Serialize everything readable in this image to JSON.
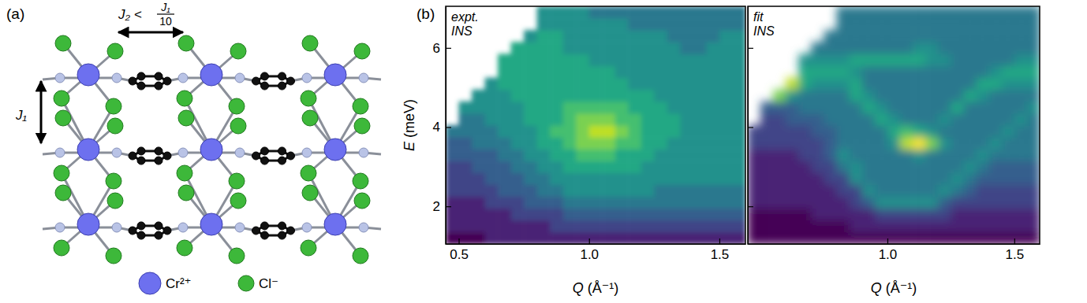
{
  "figure": {
    "panel_labels": [
      "(a)",
      "(b)"
    ]
  },
  "diagram": {
    "j1_label": "J₁",
    "j2_label": "J₂ <",
    "j2_fraction": {
      "numerator": "J₁",
      "denominator": "10"
    },
    "legend": [
      {
        "label": "Cr²⁺",
        "color": "#6d70ef"
      },
      {
        "label": "Cl⁻",
        "color": "#3db83a"
      }
    ]
  },
  "chart_data": [
    {
      "type": "heatmap",
      "annotations": [
        "expt.",
        "INS"
      ],
      "x_label": "Q (Å⁻¹)",
      "y_label": "E (meV)",
      "xlim": [
        0.45,
        1.6
      ],
      "ylim": [
        1.05,
        7.05
      ],
      "xticks": [
        0.5,
        {
          "value": 1,
          "label": "1.0"
        },
        1.5
      ],
      "yticks": [
        2,
        4,
        6
      ],
      "zlim": [
        0,
        10
      ],
      "x_bins": [
        0.45,
        0.5,
        0.55,
        0.6,
        0.65,
        0.7,
        0.75,
        0.8,
        0.85,
        0.9,
        0.95,
        1,
        1.05,
        1.1,
        1.15,
        1.2,
        1.25,
        1.3,
        1.35,
        1.4,
        1.45,
        1.5,
        1.55,
        1.6
      ],
      "y_bins": [
        1.05,
        1.35,
        1.65,
        1.95,
        2.25,
        2.55,
        2.85,
        3.15,
        3.45,
        3.75,
        4.05,
        4.35,
        4.65,
        4.95,
        5.25,
        5.55,
        5.85,
        6.15,
        6.45,
        6.75,
        7.05
      ],
      "cells": [
        [
          0,
          0,
          0,
          1,
          1,
          1,
          1,
          1,
          1,
          1,
          1,
          1,
          1,
          1,
          1,
          1,
          1,
          1,
          1,
          1,
          1,
          1,
          1
        ],
        [
          1,
          1,
          1,
          1,
          1,
          1,
          1,
          1,
          2,
          2,
          2,
          2,
          2,
          2,
          2,
          2,
          2,
          2,
          2,
          2,
          2,
          2,
          2
        ],
        [
          1,
          1,
          1,
          1,
          1,
          2,
          2,
          2,
          2,
          3,
          3,
          3,
          3,
          3,
          3,
          3,
          3,
          3,
          3,
          3,
          3,
          3,
          3
        ],
        [
          1,
          1,
          1,
          2,
          2,
          2,
          3,
          3,
          3,
          4,
          4,
          4,
          4,
          4,
          4,
          4,
          4,
          4,
          4,
          4,
          4,
          4,
          4
        ],
        [
          2,
          2,
          2,
          2,
          3,
          3,
          3,
          4,
          4,
          5,
          5,
          5,
          5,
          5,
          5,
          5,
          4,
          4,
          4,
          4,
          4,
          4,
          4
        ],
        [
          2,
          2,
          2,
          3,
          3,
          3,
          4,
          4,
          5,
          5,
          5,
          5,
          5,
          5,
          5,
          5,
          5,
          5,
          5,
          5,
          5,
          5,
          5
        ],
        [
          2,
          2,
          3,
          3,
          3,
          4,
          4,
          5,
          5,
          6,
          6,
          6,
          6,
          6,
          6,
          5,
          5,
          5,
          5,
          5,
          5,
          5,
          5
        ],
        [
          3,
          3,
          3,
          3,
          4,
          4,
          5,
          5,
          6,
          6,
          7,
          7,
          7,
          6,
          6,
          6,
          5,
          5,
          5,
          5,
          5,
          5,
          5
        ],
        [
          3,
          3,
          4,
          4,
          4,
          5,
          5,
          6,
          6,
          7,
          8,
          8,
          8,
          7,
          7,
          6,
          6,
          5,
          5,
          5,
          5,
          5,
          5
        ],
        [
          4,
          4,
          4,
          4,
          5,
          5,
          5,
          6,
          7,
          7,
          8,
          9,
          9,
          8,
          7,
          6,
          6,
          6,
          5,
          5,
          5,
          5,
          5
        ],
        [
          null,
          4,
          4,
          5,
          5,
          5,
          6,
          6,
          6,
          7,
          8,
          8,
          8,
          7,
          7,
          6,
          6,
          6,
          5,
          5,
          5,
          5,
          5
        ],
        [
          null,
          5,
          5,
          5,
          5,
          5,
          6,
          6,
          6,
          7,
          7,
          7,
          7,
          7,
          6,
          6,
          6,
          5,
          5,
          5,
          5,
          5,
          5
        ],
        [
          null,
          null,
          5,
          5,
          5,
          6,
          6,
          6,
          6,
          6,
          6,
          6,
          6,
          6,
          6,
          6,
          5,
          5,
          5,
          5,
          5,
          5,
          5
        ],
        [
          null,
          null,
          null,
          5,
          6,
          6,
          6,
          6,
          6,
          6,
          6,
          6,
          6,
          6,
          5,
          5,
          5,
          5,
          5,
          5,
          5,
          5,
          5
        ],
        [
          null,
          null,
          null,
          null,
          6,
          6,
          6,
          6,
          6,
          6,
          6,
          6,
          6,
          5,
          5,
          5,
          5,
          5,
          5,
          5,
          5,
          5,
          5
        ],
        [
          null,
          null,
          null,
          null,
          6,
          6,
          6,
          6,
          6,
          6,
          6,
          5,
          5,
          5,
          5,
          5,
          5,
          5,
          5,
          5,
          5,
          5,
          5
        ],
        [
          null,
          null,
          null,
          null,
          null,
          6,
          6,
          6,
          6,
          5,
          5,
          5,
          5,
          5,
          5,
          5,
          5,
          5,
          4,
          4,
          5,
          5,
          5
        ],
        [
          null,
          null,
          null,
          null,
          null,
          null,
          5,
          6,
          6,
          5,
          5,
          5,
          5,
          5,
          5,
          5,
          5,
          4,
          4,
          4,
          4,
          5,
          5
        ],
        [
          null,
          null,
          null,
          null,
          null,
          null,
          null,
          5,
          5,
          5,
          5,
          5,
          5,
          5,
          4,
          4,
          4,
          4,
          4,
          4,
          4,
          4,
          4
        ],
        [
          null,
          null,
          null,
          null,
          null,
          null,
          null,
          5,
          5,
          5,
          5,
          4,
          4,
          4,
          4,
          4,
          4,
          4,
          4,
          4,
          4,
          4,
          4
        ]
      ]
    },
    {
      "type": "heatmap",
      "annotations": [
        "fit",
        "INS"
      ],
      "x_label": "Q (Å⁻¹)",
      "xlim": [
        0.45,
        1.6
      ],
      "ylim": [
        1.05,
        7.05
      ],
      "xticks": [
        {
          "value": 1,
          "label": "1.0"
        },
        1.5
      ],
      "yticks": [
        2,
        4,
        6
      ],
      "tick_labels": "x",
      "zlim": [
        0,
        10
      ],
      "x_bins": [
        0.45,
        0.5,
        0.55,
        0.6,
        0.65,
        0.7,
        0.75,
        0.8,
        0.85,
        0.9,
        0.95,
        1,
        1.05,
        1.1,
        1.15,
        1.2,
        1.25,
        1.3,
        1.35,
        1.4,
        1.45,
        1.5,
        1.55,
        1.6
      ],
      "y_bins": [
        1.05,
        1.35,
        1.65,
        1.95,
        2.25,
        2.55,
        2.85,
        3.15,
        3.45,
        3.75,
        4.05,
        4.35,
        4.65,
        4.95,
        5.25,
        5.55,
        5.85,
        6.15,
        6.45,
        6.75,
        7.05
      ],
      "cells": [
        [
          0,
          0,
          0,
          0,
          0,
          0,
          0,
          0,
          0,
          0,
          0,
          0,
          0,
          0,
          0,
          0,
          0,
          0,
          0,
          0,
          0,
          0,
          0
        ],
        [
          0,
          0,
          0,
          0,
          0,
          0,
          0,
          0,
          1,
          1,
          1,
          1,
          1,
          1,
          1,
          1,
          1,
          1,
          1,
          1,
          1,
          1,
          1
        ],
        [
          0,
          0,
          0,
          0,
          0,
          1,
          1,
          1,
          1,
          1,
          2,
          2,
          2,
          2,
          2,
          2,
          1,
          1,
          1,
          1,
          1,
          1,
          1
        ],
        [
          1,
          1,
          1,
          1,
          1,
          1,
          1,
          1,
          2,
          3,
          5,
          5,
          5,
          5,
          5,
          3,
          2,
          2,
          2,
          2,
          2,
          2,
          2
        ],
        [
          1,
          1,
          1,
          1,
          1,
          1,
          1,
          2,
          2,
          5,
          4,
          4,
          4,
          4,
          4,
          5,
          4,
          3,
          2,
          2,
          2,
          2,
          2
        ],
        [
          1,
          1,
          1,
          1,
          1,
          1,
          2,
          2,
          5,
          4,
          4,
          4,
          4,
          4,
          4,
          4,
          5,
          4,
          3,
          3,
          3,
          3,
          3
        ],
        [
          1,
          1,
          1,
          1,
          1,
          2,
          2,
          4,
          5,
          4,
          4,
          4,
          4,
          4,
          4,
          4,
          4,
          5,
          4,
          3,
          3,
          3,
          3
        ],
        [
          1,
          1,
          1,
          1,
          2,
          2,
          3,
          5,
          4,
          4,
          4,
          4,
          4,
          5,
          4,
          4,
          4,
          4,
          5,
          4,
          4,
          4,
          4
        ],
        [
          2,
          2,
          2,
          2,
          2,
          2,
          3,
          4,
          4,
          4,
          4,
          5,
          9,
          10,
          8,
          5,
          4,
          4,
          4,
          5,
          4,
          4,
          4
        ],
        [
          2,
          2,
          2,
          2,
          2,
          3,
          3,
          4,
          4,
          4,
          4,
          6,
          7,
          6,
          5,
          4,
          4,
          4,
          4,
          4,
          5,
          4,
          4
        ],
        [
          null,
          2,
          2,
          3,
          3,
          3,
          4,
          4,
          4,
          4,
          6,
          5,
          4,
          4,
          4,
          5,
          4,
          4,
          4,
          4,
          4,
          5,
          4
        ],
        [
          null,
          3,
          3,
          3,
          4,
          4,
          4,
          4,
          4,
          6,
          5,
          4,
          4,
          4,
          4,
          4,
          6,
          4,
          4,
          4,
          4,
          4,
          5
        ],
        [
          null,
          null,
          8,
          5,
          4,
          4,
          4,
          4,
          6,
          5,
          4,
          4,
          4,
          4,
          4,
          4,
          4,
          6,
          5,
          4,
          4,
          4,
          4
        ],
        [
          null,
          null,
          null,
          9,
          6,
          5,
          5,
          5,
          6,
          4,
          4,
          4,
          4,
          4,
          4,
          4,
          4,
          4,
          6,
          6,
          5,
          5,
          5
        ],
        [
          null,
          null,
          null,
          null,
          6,
          6,
          6,
          6,
          5,
          4,
          4,
          4,
          4,
          4,
          4,
          4,
          4,
          4,
          4,
          5,
          6,
          6,
          6
        ],
        [
          null,
          null,
          null,
          null,
          5,
          5,
          5,
          5,
          6,
          6,
          6,
          6,
          6,
          6,
          5,
          5,
          4,
          4,
          4,
          4,
          4,
          5,
          5
        ],
        [
          null,
          null,
          null,
          null,
          null,
          4,
          4,
          4,
          4,
          4,
          4,
          4,
          4,
          5,
          5,
          4,
          4,
          4,
          4,
          4,
          4,
          4,
          4
        ],
        [
          null,
          null,
          null,
          null,
          null,
          null,
          4,
          4,
          4,
          4,
          4,
          4,
          4,
          4,
          4,
          4,
          4,
          4,
          4,
          4,
          4,
          4,
          4
        ],
        [
          null,
          null,
          null,
          null,
          null,
          null,
          null,
          4,
          4,
          4,
          4,
          4,
          4,
          4,
          4,
          4,
          4,
          4,
          4,
          4,
          4,
          4,
          4
        ],
        [
          null,
          null,
          null,
          null,
          null,
          null,
          null,
          4,
          4,
          4,
          4,
          4,
          4,
          4,
          4,
          4,
          4,
          4,
          4,
          4,
          4,
          4,
          4
        ]
      ]
    }
  ]
}
